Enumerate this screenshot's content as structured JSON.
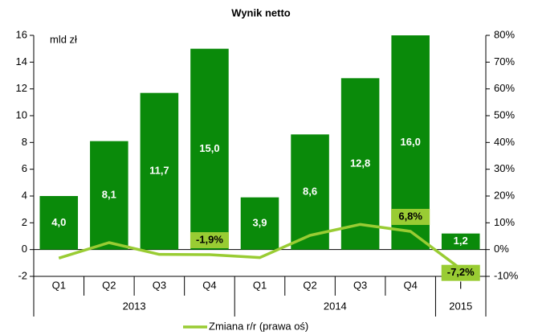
{
  "chart_data": {
    "type": "bar",
    "title": "Wynik netto",
    "y_unit_label": "mld zł",
    "groups": [
      {
        "label": "2013",
        "categories": [
          "Q1",
          "Q2",
          "Q3",
          "Q4"
        ]
      },
      {
        "label": "2014",
        "categories": [
          "Q1",
          "Q2",
          "Q3",
          "Q4"
        ]
      },
      {
        "label": "2015",
        "categories": [
          "I"
        ]
      }
    ],
    "series": [
      {
        "type": "bar",
        "color": "#0a8a0a",
        "values": [
          4.0,
          8.1,
          11.7,
          15.0,
          3.9,
          8.6,
          12.8,
          16.0,
          1.2
        ],
        "value_labels": [
          "4,0",
          "8,1",
          "11,7",
          "15,0",
          "3,9",
          "8,6",
          "12,8",
          "16,0",
          "1,2"
        ]
      },
      {
        "type": "line",
        "name": "Zmiana r/r (prawa oś)",
        "color": "#99cc33",
        "axis": "y2",
        "values": [
          -3.2,
          2.6,
          -1.8,
          -1.9,
          -3.0,
          5.3,
          9.4,
          6.8,
          -7.2
        ],
        "value_labels": [
          null,
          null,
          null,
          "-1,9%",
          null,
          null,
          null,
          "6,8%",
          "-7,2%"
        ]
      }
    ],
    "ylim": [
      -2,
      16
    ],
    "yticks": [
      -2,
      0,
      2,
      4,
      6,
      8,
      10,
      12,
      14,
      16
    ],
    "y2lim": [
      -10,
      80
    ],
    "y2ticks": [
      {
        "value": -10,
        "label": "-10%"
      },
      {
        "value": 0,
        "label": "0%"
      },
      {
        "value": 10,
        "label": "10%"
      },
      {
        "value": 20,
        "label": "20%"
      },
      {
        "value": 30,
        "label": "30%"
      },
      {
        "value": 40,
        "label": "40%"
      },
      {
        "value": 50,
        "label": "50%"
      },
      {
        "value": 60,
        "label": "60%"
      },
      {
        "value": 70,
        "label": "70%"
      },
      {
        "value": 80,
        "label": "80%"
      }
    ],
    "grid": false,
    "legend": "bottom"
  }
}
